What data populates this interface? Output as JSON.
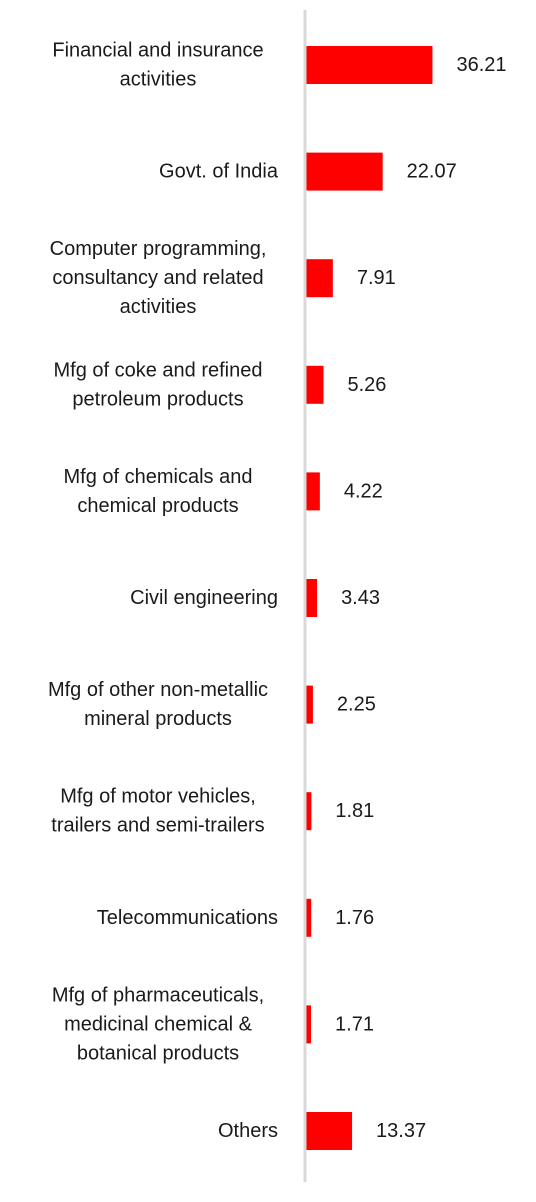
{
  "chart_data": {
    "type": "bar",
    "orientation": "horizontal",
    "categories": [
      [
        "Financial and insurance",
        "activities"
      ],
      [
        "Govt. of India"
      ],
      [
        "Computer programming,",
        "consultancy and related",
        "activities"
      ],
      [
        "Mfg of coke and refined",
        "petroleum products"
      ],
      [
        "Mfg of chemicals and",
        "chemical products"
      ],
      [
        "Civil engineering"
      ],
      [
        "Mfg of other non-metallic",
        "mineral products"
      ],
      [
        "Mfg of motor vehicles,",
        "trailers and semi-trailers"
      ],
      [
        "Telecommunications"
      ],
      [
        "Mfg of pharmaceuticals,",
        "medicinal chemical &",
        "botanical products"
      ],
      [
        "Others"
      ]
    ],
    "values": [
      36.21,
      22.07,
      7.91,
      5.26,
      4.22,
      3.43,
      2.25,
      1.81,
      1.76,
      1.71,
      13.37
    ],
    "value_labels": [
      "36.21",
      "22.07",
      "7.91",
      "5.26",
      "4.22",
      "3.43",
      "2.25",
      "1.81",
      "1.76",
      "1.71",
      "13.37"
    ],
    "title": "",
    "xlabel": "",
    "ylabel": "",
    "xlim": [
      0,
      40
    ],
    "grid": false,
    "legend": "none",
    "colors": {
      "bar": "#ff0000",
      "axis": "#d9d9d9",
      "text": "#1a1a1a"
    }
  }
}
